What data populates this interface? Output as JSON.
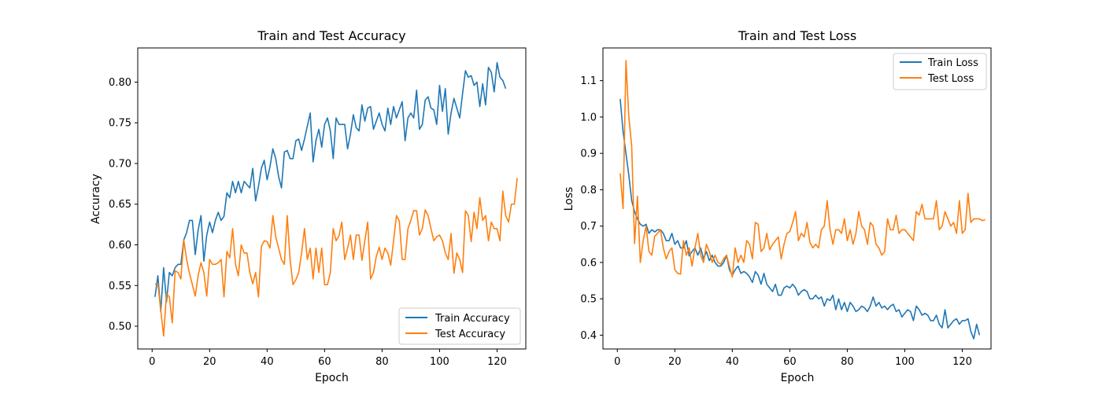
{
  "chart_data": [
    {
      "type": "line",
      "title": "Train and Test Accuracy",
      "xlabel": "Epoch",
      "ylabel": "Accuracy",
      "xlim": [
        -5,
        130
      ],
      "ylim": [
        0.472,
        0.842
      ],
      "xticks": [
        0,
        20,
        40,
        60,
        80,
        100,
        120
      ],
      "yticks": [
        0.5,
        0.55,
        0.6,
        0.65,
        0.7,
        0.75,
        0.8
      ],
      "ytick_labels": [
        "0.50",
        "0.55",
        "0.60",
        "0.65",
        "0.70",
        "0.75",
        "0.80"
      ],
      "grid": false,
      "legend_position": "lower-right",
      "series": [
        {
          "name": "Train Accuracy",
          "color": "#1f77b4",
          "x_start": 1,
          "values": [
            0.536,
            0.562,
            0.518,
            0.572,
            0.53,
            0.566,
            0.562,
            0.572,
            0.576,
            0.576,
            0.606,
            0.615,
            0.63,
            0.63,
            0.588,
            0.618,
            0.636,
            0.58,
            0.612,
            0.628,
            0.615,
            0.63,
            0.64,
            0.63,
            0.635,
            0.664,
            0.658,
            0.678,
            0.664,
            0.678,
            0.664,
            0.678,
            0.674,
            0.67,
            0.694,
            0.654,
            0.672,
            0.694,
            0.704,
            0.68,
            0.696,
            0.718,
            0.706,
            0.684,
            0.67,
            0.714,
            0.716,
            0.706,
            0.706,
            0.728,
            0.73,
            0.716,
            0.73,
            0.746,
            0.762,
            0.702,
            0.728,
            0.742,
            0.72,
            0.748,
            0.756,
            0.74,
            0.706,
            0.756,
            0.748,
            0.748,
            0.748,
            0.718,
            0.736,
            0.76,
            0.744,
            0.74,
            0.772,
            0.752,
            0.768,
            0.77,
            0.742,
            0.752,
            0.762,
            0.748,
            0.74,
            0.768,
            0.748,
            0.77,
            0.756,
            0.766,
            0.776,
            0.728,
            0.756,
            0.762,
            0.756,
            0.79,
            0.742,
            0.748,
            0.778,
            0.782,
            0.768,
            0.766,
            0.748,
            0.796,
            0.764,
            0.792,
            0.736,
            0.762,
            0.78,
            0.768,
            0.756,
            0.786,
            0.814,
            0.806,
            0.808,
            0.796,
            0.8,
            0.77,
            0.798,
            0.772,
            0.818,
            0.812,
            0.788,
            0.824,
            0.806,
            0.802,
            0.792
          ]
        },
        {
          "name": "Test Accuracy",
          "color": "#ff7f0e",
          "x_start": 1,
          "values": [
            0.552,
            0.552,
            0.52,
            0.488,
            0.54,
            0.536,
            0.504,
            0.568,
            0.566,
            0.558,
            0.606,
            0.582,
            0.565,
            0.551,
            0.537,
            0.562,
            0.578,
            0.566,
            0.537,
            0.582,
            0.576,
            0.576,
            0.578,
            0.582,
            0.536,
            0.592,
            0.584,
            0.62,
            0.576,
            0.562,
            0.6,
            0.59,
            0.59,
            0.566,
            0.552,
            0.566,
            0.536,
            0.598,
            0.605,
            0.604,
            0.596,
            0.636,
            0.61,
            0.596,
            0.582,
            0.576,
            0.636,
            0.582,
            0.551,
            0.557,
            0.566,
            0.59,
            0.62,
            0.582,
            0.596,
            0.558,
            0.596,
            0.566,
            0.596,
            0.551,
            0.551,
            0.566,
            0.62,
            0.605,
            0.611,
            0.628,
            0.582,
            0.596,
            0.612,
            0.582,
            0.612,
            0.612,
            0.581,
            0.605,
            0.628,
            0.558,
            0.566,
            0.586,
            0.597,
            0.582,
            0.596,
            0.59,
            0.575,
            0.605,
            0.636,
            0.629,
            0.582,
            0.582,
            0.62,
            0.63,
            0.642,
            0.642,
            0.612,
            0.62,
            0.643,
            0.636,
            0.62,
            0.605,
            0.61,
            0.612,
            0.605,
            0.59,
            0.582,
            0.614,
            0.565,
            0.59,
            0.582,
            0.566,
            0.642,
            0.636,
            0.604,
            0.64,
            0.62,
            0.658,
            0.63,
            0.636,
            0.605,
            0.628,
            0.62,
            0.62,
            0.605,
            0.666,
            0.636,
            0.628,
            0.65,
            0.65,
            0.682
          ]
        }
      ]
    },
    {
      "type": "line",
      "title": "Train and Test Loss",
      "xlabel": "Epoch",
      "ylabel": "Loss",
      "xlim": [
        -5,
        130
      ],
      "ylim": [
        0.362,
        1.19
      ],
      "xticks": [
        0,
        20,
        40,
        60,
        80,
        100,
        120
      ],
      "yticks": [
        0.4,
        0.5,
        0.6,
        0.7,
        0.8,
        0.9,
        1.0,
        1.1
      ],
      "ytick_labels": [
        "0.4",
        "0.5",
        "0.6",
        "0.7",
        "0.8",
        "0.9",
        "1.0",
        "1.1"
      ],
      "grid": false,
      "legend_position": "upper-right",
      "series": [
        {
          "name": "Train Loss",
          "color": "#1f77b4",
          "x_start": 1,
          "values": [
            1.05,
            0.96,
            0.9,
            0.84,
            0.77,
            0.74,
            0.72,
            0.705,
            0.7,
            0.705,
            0.68,
            0.69,
            0.684,
            0.69,
            0.69,
            0.68,
            0.66,
            0.66,
            0.68,
            0.65,
            0.66,
            0.64,
            0.64,
            0.66,
            0.618,
            0.63,
            0.64,
            0.62,
            0.64,
            0.61,
            0.63,
            0.605,
            0.62,
            0.6,
            0.59,
            0.59,
            0.6,
            0.62,
            0.58,
            0.565,
            0.58,
            0.59,
            0.57,
            0.575,
            0.57,
            0.56,
            0.545,
            0.575,
            0.565,
            0.54,
            0.57,
            0.54,
            0.53,
            0.52,
            0.54,
            0.51,
            0.51,
            0.53,
            0.535,
            0.53,
            0.54,
            0.53,
            0.51,
            0.52,
            0.525,
            0.52,
            0.5,
            0.5,
            0.51,
            0.5,
            0.505,
            0.48,
            0.5,
            0.495,
            0.51,
            0.47,
            0.5,
            0.47,
            0.49,
            0.465,
            0.49,
            0.48,
            0.465,
            0.47,
            0.48,
            0.475,
            0.465,
            0.48,
            0.505,
            0.48,
            0.49,
            0.475,
            0.48,
            0.47,
            0.48,
            0.485,
            0.465,
            0.47,
            0.45,
            0.46,
            0.47,
            0.465,
            0.44,
            0.48,
            0.47,
            0.455,
            0.46,
            0.455,
            0.44,
            0.44,
            0.455,
            0.43,
            0.42,
            0.47,
            0.42,
            0.43,
            0.44,
            0.445,
            0.43,
            0.44,
            0.44,
            0.445,
            0.41,
            0.39,
            0.43,
            0.4
          ]
        },
        {
          "name": "Test Loss",
          "color": "#ff7f0e",
          "x_start": 1,
          "values": [
            0.845,
            0.748,
            1.155,
            1.0,
            0.92,
            0.652,
            0.782,
            0.6,
            0.66,
            0.7,
            0.63,
            0.62,
            0.672,
            0.68,
            0.69,
            0.64,
            0.61,
            0.63,
            0.64,
            0.58,
            0.57,
            0.568,
            0.66,
            0.62,
            0.64,
            0.59,
            0.64,
            0.68,
            0.62,
            0.6,
            0.65,
            0.63,
            0.6,
            0.62,
            0.6,
            0.595,
            0.61,
            0.62,
            0.59,
            0.56,
            0.64,
            0.6,
            0.62,
            0.6,
            0.66,
            0.65,
            0.61,
            0.71,
            0.705,
            0.63,
            0.64,
            0.68,
            0.635,
            0.65,
            0.66,
            0.67,
            0.61,
            0.65,
            0.68,
            0.685,
            0.71,
            0.74,
            0.66,
            0.68,
            0.67,
            0.71,
            0.655,
            0.64,
            0.65,
            0.64,
            0.69,
            0.7,
            0.77,
            0.69,
            0.65,
            0.69,
            0.69,
            0.68,
            0.72,
            0.66,
            0.69,
            0.65,
            0.68,
            0.74,
            0.7,
            0.69,
            0.65,
            0.71,
            0.7,
            0.65,
            0.64,
            0.62,
            0.63,
            0.72,
            0.69,
            0.69,
            0.73,
            0.68,
            0.69,
            0.69,
            0.68,
            0.67,
            0.66,
            0.74,
            0.73,
            0.76,
            0.72,
            0.72,
            0.72,
            0.72,
            0.77,
            0.69,
            0.7,
            0.74,
            0.72,
            0.7,
            0.71,
            0.68,
            0.77,
            0.68,
            0.69,
            0.79,
            0.71,
            0.72,
            0.72,
            0.72,
            0.715,
            0.718
          ]
        }
      ]
    }
  ]
}
